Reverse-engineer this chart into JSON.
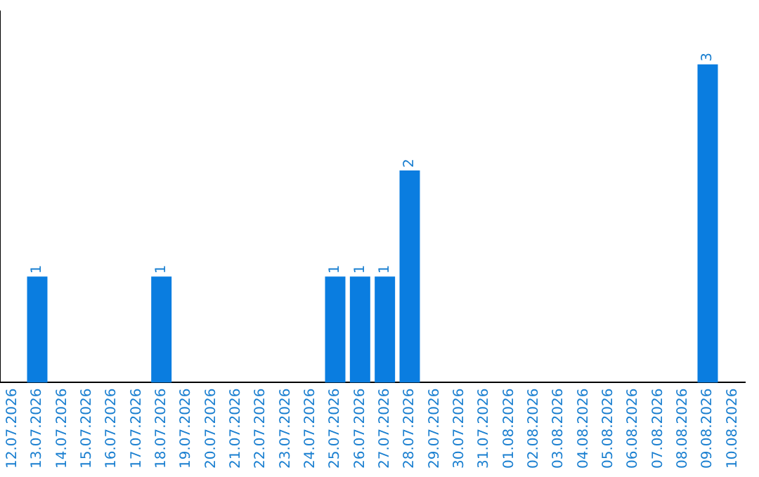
{
  "chart_data": {
    "type": "bar",
    "categories": [
      "12.07.2026",
      "13.07.2026",
      "14.07.2026",
      "15.07.2026",
      "16.07.2026",
      "17.07.2026",
      "18.07.2026",
      "19.07.2026",
      "20.07.2026",
      "21.07.2026",
      "22.07.2026",
      "23.07.2026",
      "24.07.2026",
      "25.07.2026",
      "26.07.2026",
      "27.07.2026",
      "28.07.2026",
      "29.07.2026",
      "30.07.2026",
      "31.07.2026",
      "01.08.2026",
      "02.08.2026",
      "03.08.2026",
      "04.08.2026",
      "05.08.2026",
      "06.08.2026",
      "07.08.2026",
      "08.08.2026",
      "09.08.2026",
      "10.08.2026"
    ],
    "values": [
      0,
      1,
      0,
      0,
      0,
      0,
      1,
      0,
      0,
      0,
      0,
      0,
      0,
      1,
      1,
      1,
      2,
      0,
      0,
      0,
      0,
      0,
      0,
      0,
      0,
      0,
      0,
      0,
      3,
      0
    ],
    "value_labels": [
      null,
      "1",
      null,
      null,
      null,
      null,
      "1",
      null,
      null,
      null,
      null,
      null,
      null,
      "1",
      "1",
      "1",
      "2",
      null,
      null,
      null,
      null,
      null,
      null,
      null,
      null,
      null,
      null,
      null,
      "3",
      null
    ],
    "color": "#0a7de0",
    "grid": false,
    "legend": false,
    "tick_labels": "x"
  }
}
